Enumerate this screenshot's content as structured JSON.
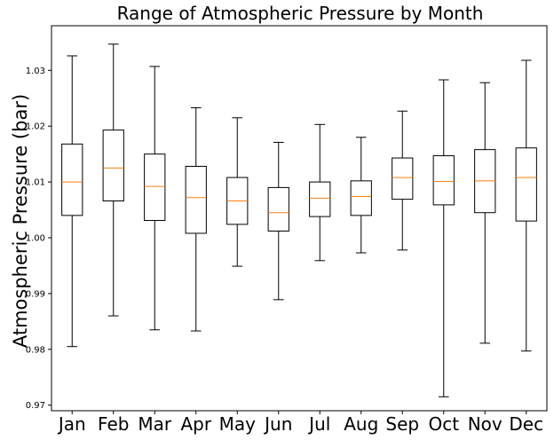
{
  "chart_data": {
    "type": "box",
    "title": "Range of Atmospheric Pressure by Month",
    "xlabel": "",
    "ylabel": "Atmospheric Pressure (bar)",
    "ylim": [
      0.969,
      1.038
    ],
    "yticks": [
      "0.97",
      "0.98",
      "0.99",
      "1.00",
      "1.01",
      "1.02",
      "1.03"
    ],
    "grid": false,
    "legend": "none",
    "colors": {
      "box": "#000000",
      "median": "#ff7f0e"
    },
    "categories": [
      "Jan",
      "Feb",
      "Mar",
      "Apr",
      "May",
      "Jun",
      "Jul",
      "Aug",
      "Sep",
      "Oct",
      "Nov",
      "Dec"
    ],
    "boxes": [
      {
        "min": 0.9805,
        "q1": 1.004,
        "median": 1.01,
        "q3": 1.0168,
        "max": 1.0326
      },
      {
        "min": 0.986,
        "q1": 1.0066,
        "median": 1.0125,
        "q3": 1.0193,
        "max": 1.0347
      },
      {
        "min": 0.9835,
        "q1": 1.0031,
        "median": 1.0092,
        "q3": 1.015,
        "max": 1.0307
      },
      {
        "min": 0.9833,
        "q1": 1.0008,
        "median": 1.0072,
        "q3": 1.0128,
        "max": 1.0233
      },
      {
        "min": 0.9949,
        "q1": 1.0024,
        "median": 1.0066,
        "q3": 1.0108,
        "max": 1.0215
      },
      {
        "min": 0.9889,
        "q1": 1.0012,
        "median": 1.0045,
        "q3": 1.009,
        "max": 1.0171
      },
      {
        "min": 0.9959,
        "q1": 1.0038,
        "median": 1.0071,
        "q3": 1.01,
        "max": 1.0203
      },
      {
        "min": 0.9973,
        "q1": 1.004,
        "median": 1.0074,
        "q3": 1.0102,
        "max": 1.018
      },
      {
        "min": 0.9978,
        "q1": 1.0069,
        "median": 1.0108,
        "q3": 1.0143,
        "max": 1.0227
      },
      {
        "min": 0.9715,
        "q1": 1.0059,
        "median": 1.0101,
        "q3": 1.0147,
        "max": 1.0283
      },
      {
        "min": 0.9811,
        "q1": 1.0045,
        "median": 1.0102,
        "q3": 1.0158,
        "max": 1.0278
      },
      {
        "min": 0.9797,
        "q1": 1.003,
        "median": 1.0108,
        "q3": 1.0161,
        "max": 1.0318
      }
    ]
  }
}
